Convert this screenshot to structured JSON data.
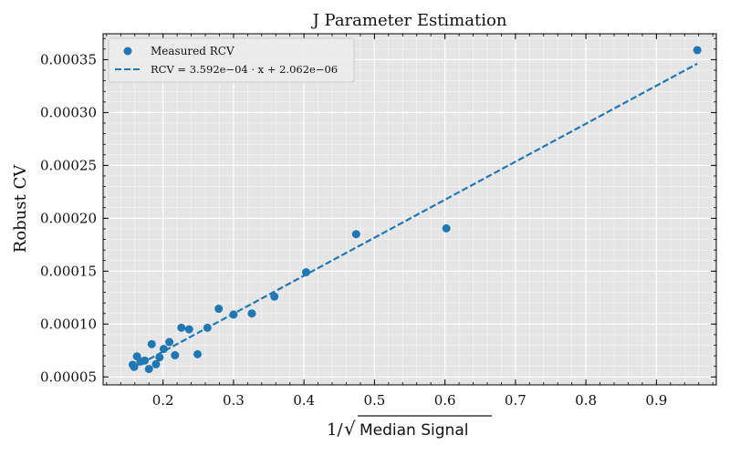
{
  "chart_data": {
    "type": "scatter",
    "title": "J Parameter Estimation",
    "xlabel_prefix": "1/",
    "xlabel_radicand": "Median Signal",
    "ylabel": "Robust CV",
    "xlim": [
      0.115,
      0.985
    ],
    "ylim": [
      4.25e-05,
      0.0003745
    ],
    "xticks": [
      0.2,
      0.3,
      0.4,
      0.5,
      0.6,
      0.7,
      0.8,
      0.9
    ],
    "xtick_labels": [
      "0.2",
      "0.3",
      "0.4",
      "0.5",
      "0.6",
      "0.7",
      "0.8",
      "0.9"
    ],
    "yticks": [
      5e-05,
      0.0001,
      0.00015,
      0.0002,
      0.00025,
      0.0003,
      0.00035
    ],
    "ytick_labels": [
      "0.00005",
      "0.00010",
      "0.00015",
      "0.00020",
      "0.00025",
      "0.00030",
      "0.00035"
    ],
    "grid": true,
    "legend_position": "top-left",
    "colors": {
      "points": "#1f77b4",
      "fit": "#1f77b4",
      "plot_bg": "#e5e5e5",
      "grid": "#ffffff"
    },
    "series": [
      {
        "name": "Measured RCV",
        "kind": "scatter",
        "x": [
          0.157,
          0.159,
          0.163,
          0.168,
          0.174,
          0.18,
          0.184,
          0.19,
          0.195,
          0.201,
          0.209,
          0.217,
          0.226,
          0.237,
          0.249,
          0.263,
          0.279,
          0.3,
          0.326,
          0.358,
          0.403,
          0.474,
          0.602,
          0.958
        ],
        "y": [
          6.15e-05,
          5.95e-05,
          6.95e-05,
          6.45e-05,
          6.55e-05,
          5.75e-05,
          8.1e-05,
          6.2e-05,
          6.85e-05,
          7.65e-05,
          8.3e-05,
          7.05e-05,
          9.65e-05,
          9.5e-05,
          7.15e-05,
          9.65e-05,
          0.0001145,
          0.000109,
          0.00011,
          0.000126,
          0.000149,
          0.000185,
          0.0001905,
          0.000359
        ]
      },
      {
        "name": "RCV = 3.592e−04 · x + 2.062e−06",
        "kind": "line",
        "style": "dashed",
        "slope": 0.0003592,
        "intercept": 2.062e-06,
        "x_range": [
          0.157,
          0.958
        ]
      }
    ]
  }
}
